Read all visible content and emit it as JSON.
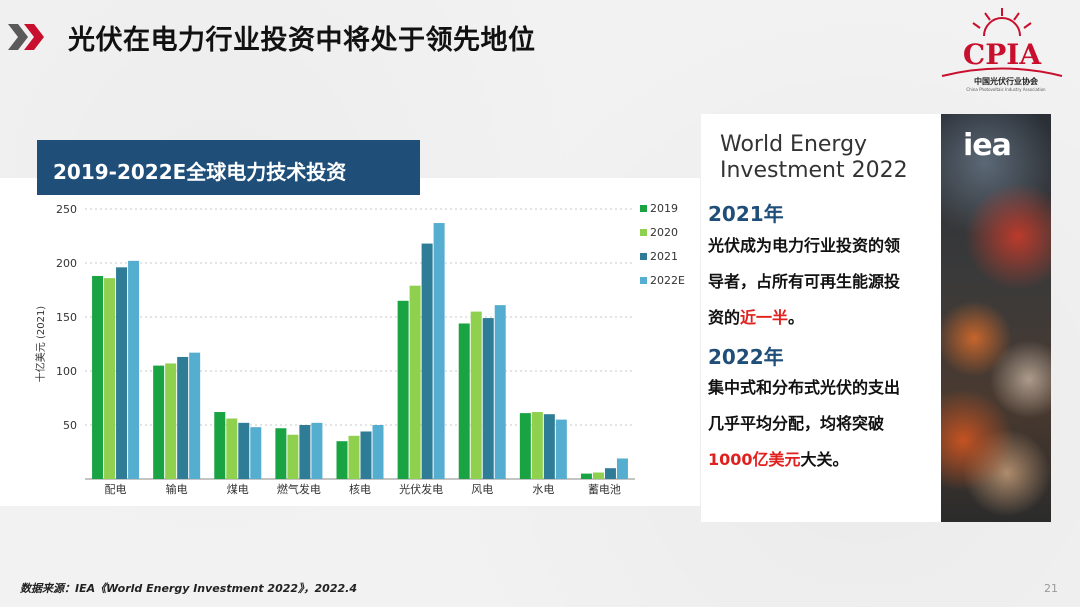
{
  "slide": {
    "title": "光伏在电力行业投资中将处于领先地位",
    "page_number": "21",
    "source": "数据来源：IEA《World Energy Investment 2022》，2022.4"
  },
  "logo": {
    "name": "CPIA",
    "org_cn": "中国光伏行业协会",
    "org_en": "China Photovoltaic Industry Association",
    "colors": {
      "primary": "#c8102e"
    }
  },
  "chart_header": "2019-2022E全球电力技术投资",
  "chart_data": {
    "type": "bar",
    "title": "",
    "xlabel": "",
    "ylabel": "十亿美元 (2021)",
    "ylim": [
      0,
      250
    ],
    "yticks": [
      50,
      100,
      150,
      200,
      250
    ],
    "categories": [
      "配电",
      "输电",
      "煤电",
      "燃气发电",
      "核电",
      "光伏发电",
      "风电",
      "水电",
      "蓄电池"
    ],
    "series": [
      {
        "name": "2019",
        "color": "#1aa342",
        "values": [
          188,
          105,
          62,
          47,
          35,
          165,
          144,
          61,
          5
        ]
      },
      {
        "name": "2020",
        "color": "#8fd14f",
        "values": [
          186,
          107,
          56,
          41,
          40,
          179,
          155,
          62,
          6
        ]
      },
      {
        "name": "2021",
        "color": "#2e7c96",
        "values": [
          196,
          113,
          52,
          50,
          44,
          218,
          149,
          60,
          10
        ]
      },
      {
        "name": "2022E",
        "color": "#55aed0",
        "values": [
          202,
          117,
          48,
          52,
          50,
          237,
          161,
          55,
          19
        ]
      }
    ],
    "legend_position": "right",
    "grid": "horizontal-dotted"
  },
  "card": {
    "report_title_line1": "World Energy",
    "report_title_line2": "Investment 2022",
    "brand": "iea",
    "year1": "2021年",
    "para1_line1": "光伏成为电力行业投资的领",
    "para1_line2": "导者，占所有可再生能源投",
    "para1_line3_pre": "资的",
    "para1_line3_highlight": "近一半",
    "para1_line3_post": "。",
    "year2": "2022年",
    "para2_line1": "集中式和分布式光伏的支出",
    "para2_line2": "几乎平均分配，均将突破",
    "para2_line3_highlight": "1000亿美元",
    "para2_line3_post": "大关。",
    "highlight_color": "#e0201d"
  }
}
